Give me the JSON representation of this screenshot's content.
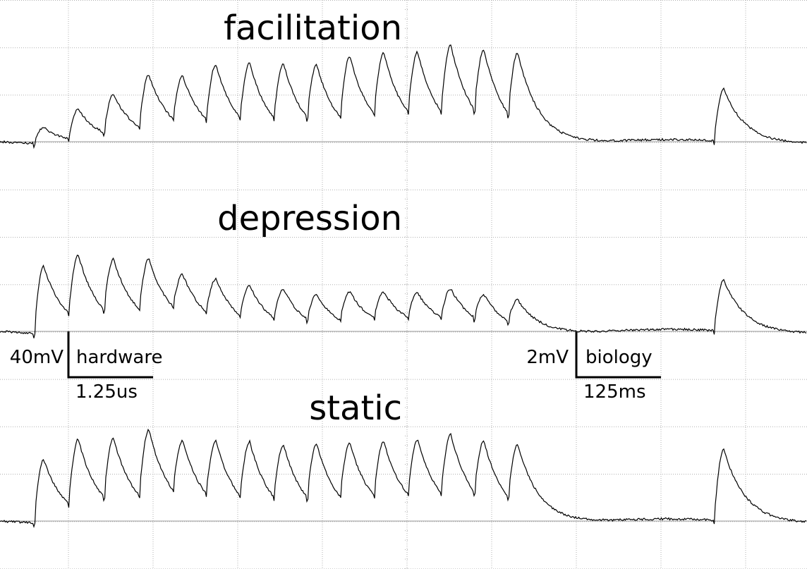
{
  "traces": [
    {
      "label": "facilitation"
    },
    {
      "label": "depression"
    },
    {
      "label": "static"
    }
  ],
  "scale_bars": [
    {
      "voltage": "40mV",
      "domain": "hardware",
      "time": "1.25us"
    },
    {
      "voltage": "2mV",
      "domain": "biology",
      "time": "125ms"
    }
  ]
}
